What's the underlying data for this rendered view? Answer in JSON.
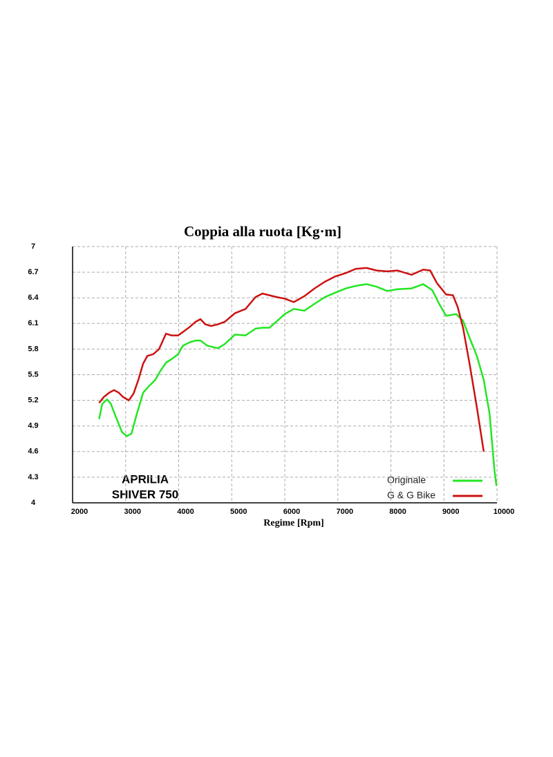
{
  "chart_data": {
    "type": "line",
    "title": "Coppia alla ruota [Kg·m]",
    "x_label": "Regime [Rpm]",
    "annotations": [
      "APRILIA",
      "SHIVER 750"
    ],
    "xlim": [
      2000,
      10000
    ],
    "xticks": [
      2000,
      3000,
      4000,
      5000,
      6000,
      7000,
      8000,
      9000,
      10000
    ],
    "ylim": [
      4,
      7
    ],
    "yticks": [
      4,
      4.3,
      4.6,
      4.9,
      5.2,
      5.5,
      5.8,
      6.1,
      6.4,
      6.7,
      7
    ],
    "grid": true,
    "legend": "lower right",
    "series": [
      {
        "name": "Originale",
        "color": "#22e622",
        "x": [
          2500,
          2560,
          2650,
          2720,
          2820,
          2930,
          3020,
          3110,
          3210,
          3330,
          3430,
          3560,
          3650,
          3760,
          3860,
          3990,
          4080,
          4210,
          4320,
          4410,
          4540,
          4740,
          4870,
          5060,
          5260,
          5450,
          5580,
          5710,
          5840,
          6000,
          6170,
          6370,
          6560,
          6760,
          6950,
          7150,
          7340,
          7540,
          7730,
          7930,
          8120,
          8390,
          8610,
          8780,
          8910,
          9040,
          9230,
          9360,
          9490,
          9620,
          9750,
          9860,
          9950,
          9990
        ],
        "values": [
          4.98,
          5.16,
          5.21,
          5.16,
          5.0,
          4.83,
          4.78,
          4.81,
          5.04,
          5.29,
          5.36,
          5.44,
          5.54,
          5.64,
          5.68,
          5.74,
          5.84,
          5.88,
          5.9,
          5.9,
          5.84,
          5.81,
          5.86,
          5.97,
          5.96,
          6.04,
          6.05,
          6.05,
          6.12,
          6.21,
          6.27,
          6.25,
          6.33,
          6.41,
          6.46,
          6.51,
          6.54,
          6.56,
          6.53,
          6.48,
          6.5,
          6.51,
          6.56,
          6.49,
          6.33,
          6.19,
          6.21,
          6.13,
          5.92,
          5.72,
          5.44,
          5.04,
          4.39,
          4.2
        ]
      },
      {
        "name": "G & G Bike",
        "color": "#cc1111",
        "x": [
          2500,
          2590,
          2690,
          2780,
          2870,
          2950,
          3060,
          3150,
          3240,
          3330,
          3410,
          3520,
          3630,
          3760,
          3860,
          3990,
          4080,
          4210,
          4320,
          4410,
          4500,
          4610,
          4740,
          4870,
          5060,
          5260,
          5450,
          5580,
          5710,
          5840,
          6000,
          6170,
          6370,
          6560,
          6760,
          6950,
          7150,
          7340,
          7540,
          7730,
          7930,
          8120,
          8390,
          8610,
          8740,
          8870,
          9040,
          9170,
          9260,
          9360,
          9490,
          9620,
          9750
        ],
        "values": [
          5.17,
          5.24,
          5.29,
          5.32,
          5.29,
          5.24,
          5.2,
          5.28,
          5.44,
          5.63,
          5.72,
          5.74,
          5.8,
          5.98,
          5.96,
          5.96,
          6.0,
          6.06,
          6.12,
          6.15,
          6.09,
          6.07,
          6.09,
          6.12,
          6.22,
          6.27,
          6.41,
          6.45,
          6.43,
          6.41,
          6.39,
          6.35,
          6.42,
          6.51,
          6.59,
          6.65,
          6.69,
          6.74,
          6.75,
          6.72,
          6.71,
          6.72,
          6.67,
          6.73,
          6.72,
          6.57,
          6.44,
          6.43,
          6.29,
          6.05,
          5.6,
          5.12,
          4.6
        ]
      }
    ]
  }
}
